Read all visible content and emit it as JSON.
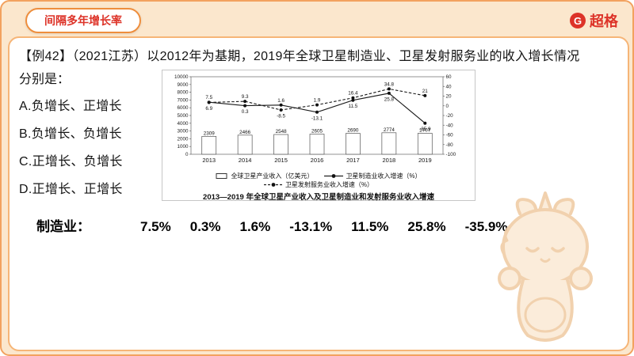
{
  "header": {
    "lesson_title": "间隔多年增长率",
    "brand": {
      "icon": "G",
      "name": "超格"
    }
  },
  "question": {
    "stem_line1": "【例42】（2021江苏）以2012年为基期，2019年全球卫星制造业、卫星发射服务业的收入增长情况",
    "stem_line2": "分别是：",
    "options": [
      "A.负增长、正增长",
      "B.负增长、负增长",
      "C.正增长、负增长",
      "D.正增长、正增长"
    ]
  },
  "chart_data": {
    "type": "bar",
    "subtype": "combo bar+line, dual axis",
    "title": "2013—2019 年全球卫星产业收入及卫星制造业和发射服务业收入增速",
    "categories": [
      "2013",
      "2014",
      "2015",
      "2016",
      "2017",
      "2018",
      "2019"
    ],
    "series": [
      {
        "name": "全球卫星产业收入（亿美元）",
        "type": "bar",
        "axis": "left",
        "values": [
          2309,
          2466,
          2548,
          2605,
          2690,
          2774,
          2707
        ]
      },
      {
        "name": "卫星制造业收入增速（%）",
        "type": "line",
        "style": "solid",
        "axis": "right",
        "values": [
          7.5,
          0.3,
          1.6,
          -13.1,
          11.5,
          25.8,
          -35.9
        ]
      },
      {
        "name": "卫星发射服务业收入增速（%）",
        "type": "line",
        "style": "dashed",
        "axis": "right",
        "values": [
          6.9,
          9.3,
          -8.5,
          1.9,
          16.4,
          34.8,
          21
        ]
      }
    ],
    "left_axis": {
      "min": 0,
      "max": 10000,
      "step": 1000
    },
    "right_axis": {
      "min": -100,
      "max": 60,
      "step": 20
    },
    "grid": false,
    "legend_position": "bottom"
  },
  "summary": {
    "label": "制造业：",
    "values": [
      "7.5%",
      "0.3%",
      "1.6%",
      "-13.1%",
      "11.5%",
      "25.8%",
      "-35.9%"
    ]
  },
  "colors": {
    "background": "#FBE7CD",
    "accent_orange": "#EE8E3D",
    "brand_red": "#DD3328",
    "chart_ink": "#111111"
  }
}
